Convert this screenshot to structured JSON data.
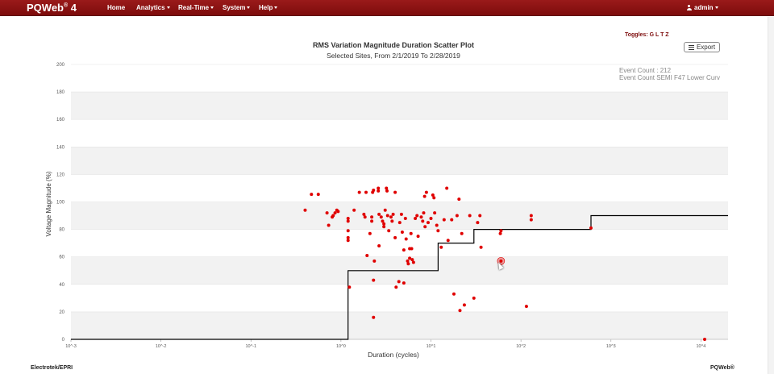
{
  "nav": {
    "brand": "PQWeb",
    "brand_sup": "®",
    "brand_version": " 4",
    "items": [
      {
        "label": "Home",
        "dropdown": false
      },
      {
        "label": "Analytics",
        "dropdown": true
      },
      {
        "label": "Real-Time",
        "dropdown": true
      },
      {
        "label": "System",
        "dropdown": true
      },
      {
        "label": "Help",
        "dropdown": true
      }
    ],
    "user": "admin"
  },
  "toggles_label": "Toggles: G L T Z",
  "export_label": "Export",
  "event_count_lines": [
    "Event Count : 212",
    "Event Count SEMI F47 Lower Curv"
  ],
  "footer": {
    "left": "Electrotek/EPRI",
    "right": "PQWeb®"
  },
  "colors": {
    "navbar": "#8b1212",
    "points": "#e00000",
    "curve": "#000000",
    "band": "#f2f2f2"
  },
  "chart_data": {
    "type": "scatter",
    "title": "RMS Variation Magnitude Duration Scatter Plot",
    "subtitle": "Selected Sites, From 2/1/2019 To 2/28/2019",
    "xlabel": "Duration (cycles)",
    "ylabel": "Voltage Magnitude (%)",
    "x_scale": "log",
    "xlim": [
      0.001,
      20000
    ],
    "ylim": [
      0,
      200
    ],
    "x_ticks": [
      {
        "value": 0.001,
        "label": "10^-3"
      },
      {
        "value": 0.01,
        "label": "10^-2"
      },
      {
        "value": 0.1,
        "label": "10^-1"
      },
      {
        "value": 1,
        "label": "10^0"
      },
      {
        "value": 10,
        "label": "10^1"
      },
      {
        "value": 100,
        "label": "10^2"
      },
      {
        "value": 1000,
        "label": "10^3"
      },
      {
        "value": 10000,
        "label": "10^4"
      }
    ],
    "y_ticks": [
      0,
      20,
      40,
      60,
      80,
      100,
      120,
      140,
      160,
      180,
      200
    ],
    "grid": "alternating horizontal bands",
    "series": [
      {
        "type": "scatter",
        "points": [
          {
            "x": 0.4,
            "y": 94
          },
          {
            "x": 0.47,
            "y": 105.5
          },
          {
            "x": 0.56,
            "y": 105.5
          },
          {
            "x": 0.7,
            "y": 92
          },
          {
            "x": 0.73,
            "y": 83
          },
          {
            "x": 0.8,
            "y": 89
          },
          {
            "x": 0.82,
            "y": 90
          },
          {
            "x": 0.86,
            "y": 92
          },
          {
            "x": 0.9,
            "y": 94
          },
          {
            "x": 0.93,
            "y": 93
          },
          {
            "x": 1.2,
            "y": 88
          },
          {
            "x": 1.2,
            "y": 86
          },
          {
            "x": 1.2,
            "y": 79
          },
          {
            "x": 1.2,
            "y": 74
          },
          {
            "x": 1.2,
            "y": 72
          },
          {
            "x": 1.24,
            "y": 38
          },
          {
            "x": 1.4,
            "y": 94
          },
          {
            "x": 1.6,
            "y": 107
          },
          {
            "x": 1.8,
            "y": 91
          },
          {
            "x": 1.85,
            "y": 89
          },
          {
            "x": 1.95,
            "y": 61
          },
          {
            "x": 1.9,
            "y": 107
          },
          {
            "x": 2.1,
            "y": 77
          },
          {
            "x": 2.2,
            "y": 86
          },
          {
            "x": 2.2,
            "y": 89
          },
          {
            "x": 2.25,
            "y": 107
          },
          {
            "x": 2.3,
            "y": 108.5
          },
          {
            "x": 2.3,
            "y": 43
          },
          {
            "x": 2.35,
            "y": 57
          },
          {
            "x": 2.3,
            "y": 16
          },
          {
            "x": 2.6,
            "y": 110
          },
          {
            "x": 2.6,
            "y": 108
          },
          {
            "x": 2.65,
            "y": 91
          },
          {
            "x": 2.65,
            "y": 68
          },
          {
            "x": 2.8,
            "y": 89
          },
          {
            "x": 2.9,
            "y": 86
          },
          {
            "x": 3.0,
            "y": 84
          },
          {
            "x": 3.0,
            "y": 82
          },
          {
            "x": 3.1,
            "y": 94
          },
          {
            "x": 3.2,
            "y": 110
          },
          {
            "x": 3.25,
            "y": 108
          },
          {
            "x": 3.3,
            "y": 90
          },
          {
            "x": 3.4,
            "y": 79
          },
          {
            "x": 3.6,
            "y": 89
          },
          {
            "x": 3.7,
            "y": 86
          },
          {
            "x": 3.8,
            "y": 91
          },
          {
            "x": 4.0,
            "y": 107
          },
          {
            "x": 4.0,
            "y": 74
          },
          {
            "x": 4.1,
            "y": 38
          },
          {
            "x": 4.4,
            "y": 42
          },
          {
            "x": 4.5,
            "y": 85
          },
          {
            "x": 4.7,
            "y": 91
          },
          {
            "x": 4.8,
            "y": 78
          },
          {
            "x": 5.0,
            "y": 65
          },
          {
            "x": 5.0,
            "y": 41
          },
          {
            "x": 5.2,
            "y": 88
          },
          {
            "x": 5.3,
            "y": 73
          },
          {
            "x": 5.5,
            "y": 57
          },
          {
            "x": 5.6,
            "y": 55
          },
          {
            "x": 5.8,
            "y": 66
          },
          {
            "x": 5.8,
            "y": 59
          },
          {
            "x": 6.0,
            "y": 77
          },
          {
            "x": 6.1,
            "y": 66
          },
          {
            "x": 6.2,
            "y": 58
          },
          {
            "x": 6.4,
            "y": 56
          },
          {
            "x": 6.7,
            "y": 88
          },
          {
            "x": 7.0,
            "y": 90
          },
          {
            "x": 7.2,
            "y": 75
          },
          {
            "x": 7.8,
            "y": 89
          },
          {
            "x": 8.1,
            "y": 86
          },
          {
            "x": 8.3,
            "y": 92
          },
          {
            "x": 8.5,
            "y": 104
          },
          {
            "x": 8.6,
            "y": 82
          },
          {
            "x": 8.9,
            "y": 107
          },
          {
            "x": 9.3,
            "y": 85
          },
          {
            "x": 10.0,
            "y": 88
          },
          {
            "x": 10.5,
            "y": 105
          },
          {
            "x": 10.8,
            "y": 103
          },
          {
            "x": 11.0,
            "y": 92
          },
          {
            "x": 11.6,
            "y": 83
          },
          {
            "x": 12.0,
            "y": 79
          },
          {
            "x": 13.0,
            "y": 67
          },
          {
            "x": 14.0,
            "y": 87
          },
          {
            "x": 15.0,
            "y": 110
          },
          {
            "x": 15.5,
            "y": 72
          },
          {
            "x": 17.0,
            "y": 87
          },
          {
            "x": 18.0,
            "y": 33
          },
          {
            "x": 19.5,
            "y": 90
          },
          {
            "x": 20.5,
            "y": 102
          },
          {
            "x": 21.0,
            "y": 21
          },
          {
            "x": 22.0,
            "y": 77
          },
          {
            "x": 23.5,
            "y": 25
          },
          {
            "x": 27.0,
            "y": 90
          },
          {
            "x": 30.0,
            "y": 30
          },
          {
            "x": 33.0,
            "y": 85
          },
          {
            "x": 35.0,
            "y": 90
          },
          {
            "x": 36.0,
            "y": 67
          },
          {
            "x": 59.0,
            "y": 77
          },
          {
            "x": 60.0,
            "y": 79
          },
          {
            "x": 60.0,
            "y": 57
          },
          {
            "x": 115.0,
            "y": 24
          },
          {
            "x": 130.0,
            "y": 87
          },
          {
            "x": 130.0,
            "y": 90
          },
          {
            "x": 600.0,
            "y": 81
          },
          {
            "x": 11000.0,
            "y": 0
          }
        ]
      },
      {
        "name": "SEMI F47 Lower Curve",
        "type": "step",
        "points": [
          {
            "x": 0.001,
            "y": 0
          },
          {
            "x": 1.2,
            "y": 0
          },
          {
            "x": 1.2,
            "y": 50
          },
          {
            "x": 12,
            "y": 50
          },
          {
            "x": 12,
            "y": 70
          },
          {
            "x": 30,
            "y": 70
          },
          {
            "x": 30,
            "y": 80
          },
          {
            "x": 600,
            "y": 80
          },
          {
            "x": 600,
            "y": 90
          },
          {
            "x": 20000,
            "y": 90
          }
        ]
      }
    ]
  }
}
